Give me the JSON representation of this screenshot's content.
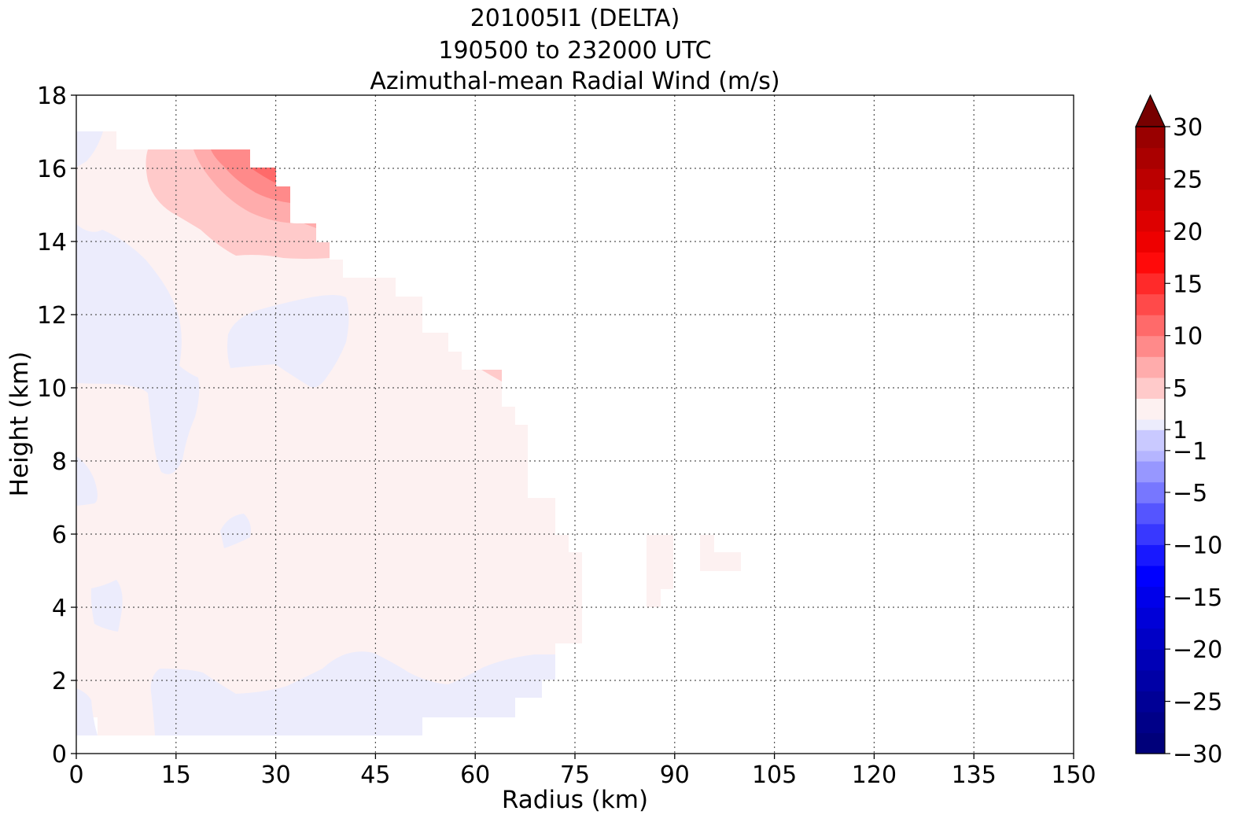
{
  "chart_data": {
    "type": "contourf",
    "title_lines": [
      "201005I1 (DELTA)",
      "190500 to 232000 UTC",
      "Azimuthal-mean Radial Wind (m/s)"
    ],
    "xlabel": "Radius (km)",
    "ylabel": "Height (km)",
    "xlim": [
      0,
      150
    ],
    "ylim": [
      0,
      18
    ],
    "xticks": [
      0,
      15,
      30,
      45,
      60,
      75,
      90,
      105,
      120,
      135,
      150
    ],
    "yticks": [
      0,
      2,
      4,
      6,
      8,
      10,
      12,
      14,
      16,
      18
    ],
    "grid": true,
    "colorbar": {
      "range": [
        -30,
        30
      ],
      "extend": "max",
      "tick_values": [
        30,
        25,
        20,
        15,
        10,
        5,
        1,
        -1,
        -5,
        -10,
        -15,
        -20,
        -25,
        -30
      ],
      "tick_labels": [
        "30",
        "25",
        "20",
        "15",
        "10",
        "5",
        "1",
        "−1",
        "−5",
        "−10",
        "−15",
        "−20",
        "−25",
        "−30"
      ],
      "levels": [
        -30,
        -28,
        -26,
        -24,
        -22,
        -20,
        -18,
        -16,
        -14,
        -12,
        -10,
        -8,
        -6,
        -4,
        -2,
        -1,
        1,
        2,
        4,
        6,
        8,
        10,
        12,
        14,
        16,
        18,
        20,
        22,
        24,
        26,
        28,
        30
      ],
      "colors": [
        "#00007a",
        "#000088",
        "#000096",
        "#0000a6",
        "#0000b6",
        "#0000c6",
        "#0000d8",
        "#0000ea",
        "#0000ff",
        "#1818ff",
        "#3838ff",
        "#5555ff",
        "#7777ff",
        "#9797ff",
        "#b5b5ff",
        "#c9c9ff",
        "#ececfc",
        "#fdf1f1",
        "#ffcaca",
        "#ffacac",
        "#ff8a8a",
        "#ff6a6a",
        "#ff4a4a",
        "#ff2a2a",
        "#ff0a0a",
        "#ee0000",
        "#dd0000",
        "#cc0000",
        "#bb0000",
        "#aa0000",
        "#990000",
        "#880000",
        "#770000"
      ]
    },
    "fields": {
      "weak_positive_fill": "#fdf1f1",
      "weak_negative_fill": "#ececfc",
      "level_2_4_fill": "#ffcaca",
      "level_4_6_fill": "#ffacac",
      "level_6_8_fill": "#ff8a8a",
      "level_8_10_fill": "#ff6a6a"
    }
  }
}
